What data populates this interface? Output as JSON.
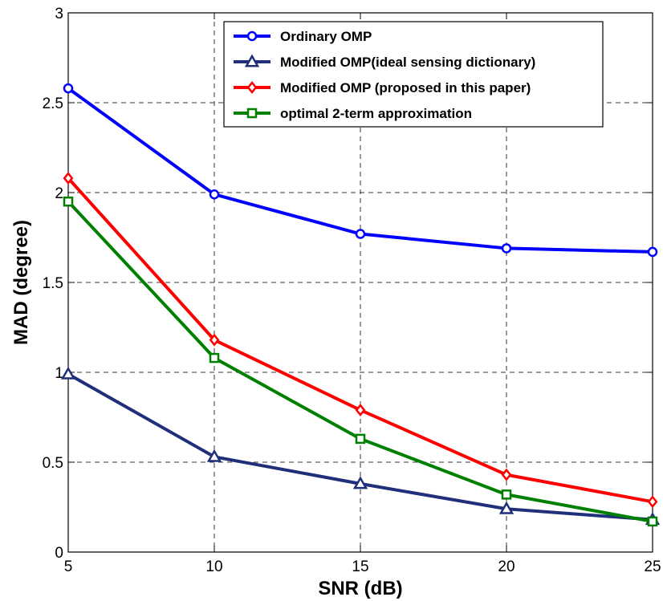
{
  "chart_data": {
    "type": "line",
    "title": "",
    "xlabel": "SNR (dB)",
    "ylabel": "MAD (degree)",
    "x": [
      5,
      10,
      15,
      20,
      25
    ],
    "xlim": [
      5,
      25
    ],
    "ylim": [
      0,
      3
    ],
    "xticks": [
      "5",
      "10",
      "15",
      "20",
      "25"
    ],
    "yticks": [
      "0",
      "0.5",
      "1",
      "1.5",
      "2",
      "2.5",
      "3"
    ],
    "grid": true,
    "legend_position": "top-right",
    "series": [
      {
        "name": "Ordinary OMP",
        "color": "#0000ff",
        "marker": "circle",
        "values": [
          2.58,
          1.99,
          1.77,
          1.69,
          1.67
        ]
      },
      {
        "name": "Modified OMP(ideal sensing dictionary)",
        "color": "#1f2f7a",
        "marker": "triangle",
        "values": [
          0.99,
          0.53,
          0.38,
          0.24,
          0.18
        ]
      },
      {
        "name": "Modified OMP (proposed in this paper)",
        "color": "#ff0000",
        "marker": "diamond",
        "values": [
          2.08,
          1.18,
          0.79,
          0.43,
          0.28
        ]
      },
      {
        "name": "optimal 2-term approximation",
        "color": "#008000",
        "marker": "square",
        "values": [
          1.95,
          1.08,
          0.63,
          0.32,
          0.17
        ]
      }
    ]
  }
}
